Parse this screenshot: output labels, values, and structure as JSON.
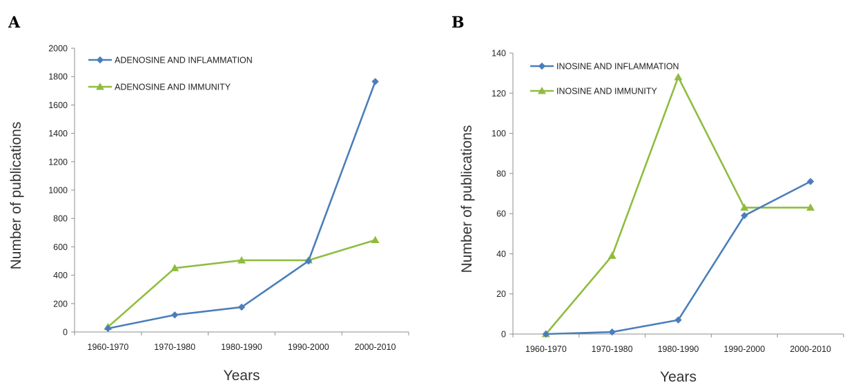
{
  "colors": {
    "inflammation": "#4a7ebb",
    "immunity": "#8fbc3f"
  },
  "chart_data": [
    {
      "panel": "A",
      "type": "line",
      "categories": [
        "1960-1970",
        "1970-1980",
        "1980-1990",
        "1990-2000",
        "2000-2010"
      ],
      "series": [
        {
          "name": "ADENOSINE AND INFLAMMATION",
          "marker": "diamond",
          "values": [
            25,
            120,
            175,
            500,
            1765
          ]
        },
        {
          "name": "ADENOSINE AND IMMUNITY",
          "marker": "triangle",
          "values": [
            35,
            450,
            505,
            505,
            648
          ]
        }
      ],
      "ylim": [
        0,
        2000
      ],
      "yticks": [
        0,
        200,
        400,
        600,
        800,
        1000,
        1200,
        1400,
        1600,
        1800,
        2000
      ],
      "xlabel": "Years",
      "ylabel": "Number of publications",
      "legend": "top-left",
      "grid": false
    },
    {
      "panel": "B",
      "type": "line",
      "categories": [
        "1960-1970",
        "1970-1980",
        "1980-1990",
        "1990-2000",
        "2000-2010"
      ],
      "series": [
        {
          "name": "INOSINE AND INFLAMMATION",
          "marker": "diamond",
          "values": [
            0,
            1,
            7,
            59,
            76
          ]
        },
        {
          "name": "INOSINE AND IMMUNITY",
          "marker": "triangle",
          "values": [
            0,
            39,
            128,
            63,
            63
          ]
        }
      ],
      "ylim": [
        0,
        140
      ],
      "yticks": [
        0,
        20,
        40,
        60,
        80,
        100,
        120,
        140
      ],
      "xlabel": "Years",
      "ylabel": "Number of publications",
      "legend": "top-left",
      "grid": false
    }
  ]
}
